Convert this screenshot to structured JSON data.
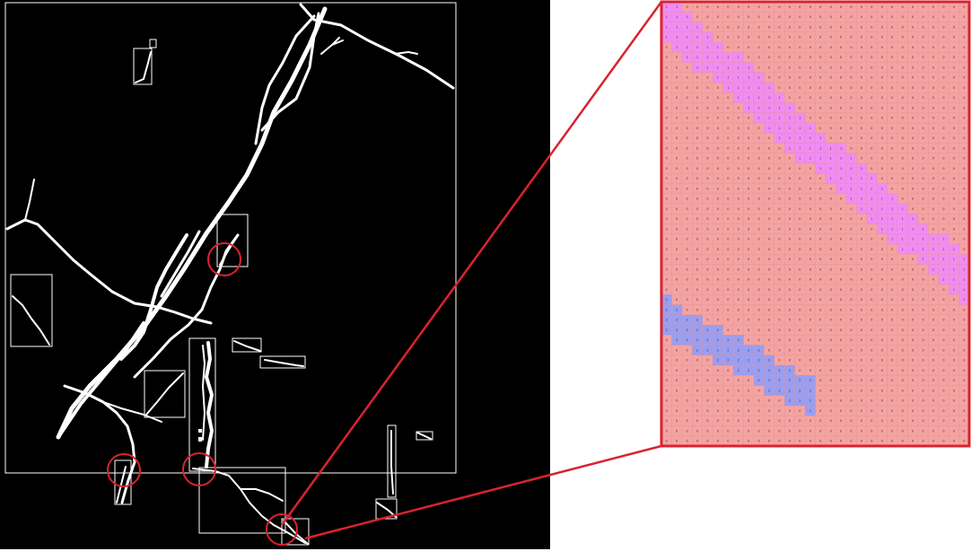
{
  "figure": {
    "left_panel": {
      "background_color": "#000000",
      "crack_color": "#ffffff",
      "box_color": "#ffffff",
      "highlight_circle_color": "#d9232f"
    },
    "zoom_panel": {
      "border_color": "#d9232f",
      "background_class_color": "#f4a3a3",
      "class_1_color": "#f08cf2",
      "class_2_color": "#9a9ef0",
      "grid_line_color": "#e58f8f",
      "cell_labels": [
        "0",
        "1",
        "2"
      ]
    }
  }
}
